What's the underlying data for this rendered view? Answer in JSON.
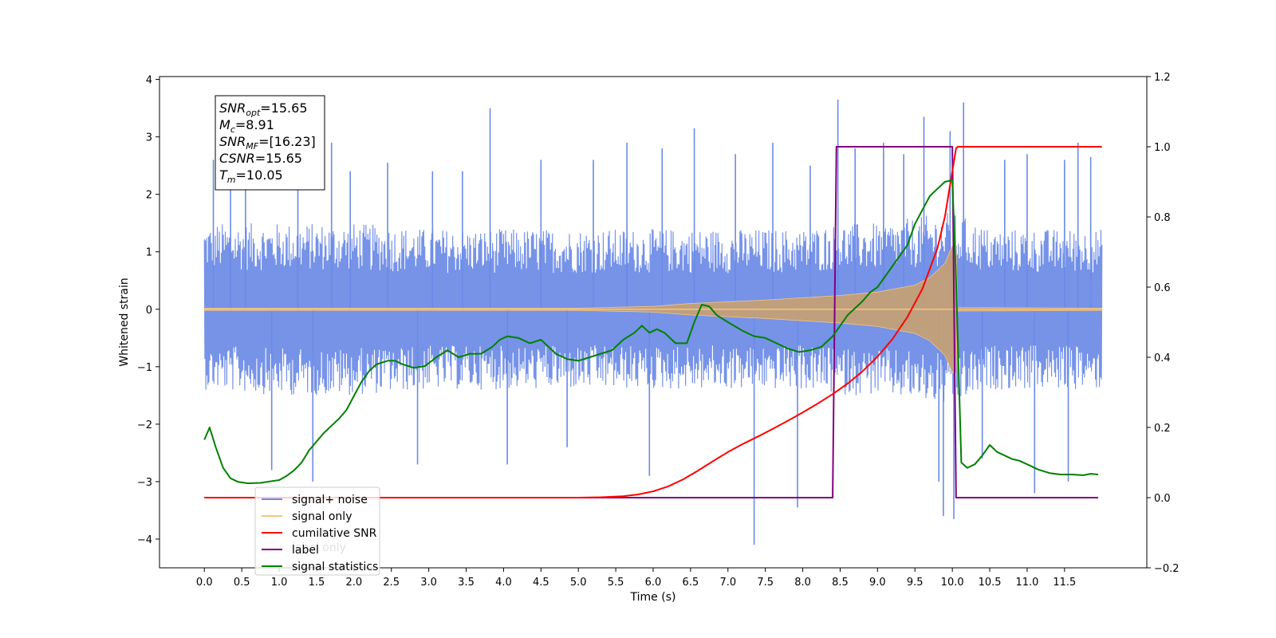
{
  "chart_data": {
    "type": "line",
    "title": "",
    "xlabel": "Time (s)",
    "ylabel": "Whitened strain",
    "xlim": [
      -0.6,
      12.6
    ],
    "ylim": [
      -4.5,
      4.05
    ],
    "y2lim": [
      -0.2,
      1.2
    ],
    "x_ticks": [
      0.0,
      0.5,
      1.0,
      1.5,
      2.0,
      2.5,
      3.0,
      3.5,
      4.0,
      4.5,
      5.0,
      5.5,
      6.0,
      6.5,
      7.0,
      7.5,
      8.0,
      8.5,
      9.0,
      9.5,
      10.0,
      10.5,
      11.0,
      11.5
    ],
    "x_tick_labels": [
      "0.0",
      "0.5",
      "1.0",
      "1.5",
      "2.0",
      "2.5",
      "3.0",
      "3.5",
      "4.0",
      "4.5",
      "5.0",
      "5.5",
      "6.0",
      "6.5",
      "7.0",
      "7.5",
      "8.0",
      "8.5",
      "9.0",
      "9.5",
      "10.0",
      "10.5",
      "11.0",
      "11.5"
    ],
    "y_ticks": [
      -4,
      -3,
      -2,
      -1,
      0,
      1,
      2,
      3,
      4
    ],
    "y_tick_labels": [
      "−4",
      "−3",
      "−2",
      "−1",
      "0",
      "1",
      "2",
      "3",
      "4"
    ],
    "y2_ticks": [
      -0.2,
      0.0,
      0.2,
      0.4,
      0.6,
      0.8,
      1.0,
      1.2
    ],
    "y2_tick_labels": [
      "−0.2",
      "0.0",
      "0.2",
      "0.4",
      "0.6",
      "0.8",
      "1.0",
      "1.2"
    ],
    "grid": false,
    "legend_position": "bottom-left",
    "colors": {
      "noise": "#6a8ae6",
      "signal": "#f5c583",
      "overlap": "#c49f77",
      "csnr": "#ff0000",
      "label": "#800080",
      "stats": "#008000"
    },
    "series": [
      {
        "name": "signal+ noise",
        "axis": "left",
        "envelope": {
          "x": [
            0.0,
            1.0,
            2.0,
            3.0,
            4.0,
            5.0,
            6.0,
            7.0,
            8.0,
            8.5,
            9.0,
            9.5,
            10.0,
            10.5,
            11.0,
            11.5,
            12.0
          ],
          "upper": [
            1.5,
            1.5,
            1.5,
            1.4,
            1.4,
            1.4,
            1.4,
            1.4,
            1.4,
            1.5,
            1.5,
            1.6,
            1.7,
            1.4,
            1.4,
            1.4,
            1.4
          ],
          "lower": [
            -1.4,
            -1.5,
            -1.5,
            -1.4,
            -1.4,
            -1.4,
            -1.4,
            -1.4,
            -1.4,
            -1.5,
            -1.5,
            -1.6,
            -1.7,
            -1.4,
            -1.4,
            -1.4,
            -1.4
          ]
        },
        "spikes": [
          [
            0.12,
            2.6
          ],
          [
            0.35,
            2.3
          ],
          [
            0.55,
            2.9
          ],
          [
            0.9,
            -2.8
          ],
          [
            1.25,
            2.7
          ],
          [
            1.45,
            -3.0
          ],
          [
            1.7,
            2.9
          ],
          [
            1.95,
            2.4
          ],
          [
            2.45,
            2.55
          ],
          [
            2.85,
            -2.7
          ],
          [
            3.05,
            2.4
          ],
          [
            3.45,
            2.4
          ],
          [
            3.82,
            3.5
          ],
          [
            4.05,
            -2.7
          ],
          [
            4.5,
            2.6
          ],
          [
            4.85,
            -2.4
          ],
          [
            5.2,
            2.6
          ],
          [
            5.65,
            2.9
          ],
          [
            5.95,
            -2.9
          ],
          [
            6.12,
            2.8
          ],
          [
            6.55,
            3.15
          ],
          [
            7.1,
            2.7
          ],
          [
            7.35,
            -4.1
          ],
          [
            7.6,
            2.9
          ],
          [
            7.93,
            -3.45
          ],
          [
            8.1,
            2.5
          ],
          [
            8.47,
            3.65
          ],
          [
            8.7,
            2.8
          ],
          [
            9.08,
            2.9
          ],
          [
            9.35,
            2.7
          ],
          [
            9.62,
            3.35
          ],
          [
            9.82,
            -3.0
          ],
          [
            9.97,
            3.1
          ],
          [
            9.88,
            -3.6
          ],
          [
            10.02,
            -3.65
          ],
          [
            10.15,
            3.6
          ],
          [
            10.4,
            -2.6
          ],
          [
            10.7,
            2.6
          ],
          [
            11.0,
            2.7
          ],
          [
            11.1,
            -3.2
          ],
          [
            11.5,
            2.6
          ],
          [
            11.68,
            2.9
          ],
          [
            11.55,
            -3.0
          ],
          [
            11.85,
            2.65
          ]
        ]
      },
      {
        "name": "signal only",
        "axis": "left",
        "envelope": {
          "x": [
            0.0,
            5.0,
            6.0,
            6.5,
            7.0,
            7.5,
            8.0,
            8.5,
            9.0,
            9.5,
            9.7,
            9.9,
            10.0,
            10.05,
            10.07,
            12.0
          ],
          "upper": [
            0.02,
            0.02,
            0.05,
            0.1,
            0.13,
            0.16,
            0.2,
            0.24,
            0.3,
            0.42,
            0.55,
            0.8,
            1.1,
            1.1,
            0.03,
            0.02
          ],
          "lower": [
            -0.02,
            -0.02,
            -0.05,
            -0.1,
            -0.13,
            -0.16,
            -0.2,
            -0.24,
            -0.3,
            -0.42,
            -0.55,
            -0.8,
            -1.1,
            -1.1,
            -0.03,
            -0.02
          ]
        }
      },
      {
        "name": "cumilative SNR",
        "axis": "right",
        "x": [
          0.0,
          5.0,
          5.3,
          5.6,
          5.8,
          6.0,
          6.2,
          6.4,
          6.6,
          6.8,
          7.0,
          7.2,
          7.4,
          7.6,
          7.8,
          8.0,
          8.2,
          8.4,
          8.6,
          8.8,
          9.0,
          9.2,
          9.4,
          9.6,
          9.8,
          9.9,
          10.0,
          10.05,
          10.07,
          12.0
        ],
        "y": [
          0.0,
          0.0,
          0.001,
          0.004,
          0.009,
          0.018,
          0.032,
          0.052,
          0.077,
          0.104,
          0.13,
          0.153,
          0.174,
          0.196,
          0.219,
          0.243,
          0.268,
          0.295,
          0.325,
          0.36,
          0.402,
          0.452,
          0.515,
          0.595,
          0.71,
          0.8,
          0.93,
          0.995,
          1.0,
          1.0
        ]
      },
      {
        "name": "label",
        "axis": "right",
        "x": [
          0.0,
          8.4,
          8.45,
          10.0,
          10.05,
          11.95
        ],
        "y": [
          0.0,
          0.0,
          1.0,
          1.0,
          0.0,
          0.0
        ]
      },
      {
        "name": "signal statistics",
        "axis": "right",
        "x": [
          0.0,
          0.07,
          0.15,
          0.25,
          0.35,
          0.45,
          0.58,
          0.75,
          0.9,
          1.0,
          1.1,
          1.2,
          1.3,
          1.4,
          1.5,
          1.6,
          1.7,
          1.8,
          1.9,
          2.0,
          2.1,
          2.2,
          2.3,
          2.45,
          2.55,
          2.65,
          2.8,
          2.95,
          3.1,
          3.25,
          3.4,
          3.55,
          3.7,
          3.85,
          3.95,
          4.05,
          4.2,
          4.35,
          4.5,
          4.6,
          4.7,
          4.85,
          5.0,
          5.15,
          5.3,
          5.45,
          5.6,
          5.75,
          5.85,
          5.95,
          6.05,
          6.15,
          6.3,
          6.45,
          6.55,
          6.65,
          6.75,
          6.85,
          7.0,
          7.2,
          7.35,
          7.5,
          7.65,
          7.8,
          7.95,
          8.1,
          8.25,
          8.4,
          8.5,
          8.6,
          8.7,
          8.8,
          8.9,
          9.0,
          9.1,
          9.2,
          9.3,
          9.4,
          9.5,
          9.6,
          9.7,
          9.8,
          9.9,
          10.0,
          10.05,
          10.12,
          10.2,
          10.3,
          10.4,
          10.5,
          10.6,
          10.7,
          10.8,
          10.9,
          11.0,
          11.15,
          11.3,
          11.45,
          11.6,
          11.75,
          11.85,
          11.95
        ],
        "y": [
          0.165,
          0.2,
          0.145,
          0.085,
          0.055,
          0.045,
          0.041,
          0.042,
          0.047,
          0.05,
          0.062,
          0.078,
          0.1,
          0.135,
          0.16,
          0.185,
          0.205,
          0.225,
          0.25,
          0.29,
          0.33,
          0.36,
          0.38,
          0.39,
          0.39,
          0.38,
          0.37,
          0.375,
          0.4,
          0.42,
          0.4,
          0.41,
          0.41,
          0.43,
          0.45,
          0.46,
          0.455,
          0.44,
          0.45,
          0.43,
          0.41,
          0.395,
          0.39,
          0.4,
          0.41,
          0.42,
          0.45,
          0.47,
          0.49,
          0.47,
          0.48,
          0.47,
          0.44,
          0.44,
          0.5,
          0.55,
          0.545,
          0.52,
          0.5,
          0.475,
          0.46,
          0.455,
          0.44,
          0.425,
          0.415,
          0.42,
          0.43,
          0.46,
          0.49,
          0.52,
          0.54,
          0.56,
          0.585,
          0.6,
          0.63,
          0.66,
          0.69,
          0.72,
          0.78,
          0.82,
          0.86,
          0.88,
          0.9,
          0.905,
          0.62,
          0.1,
          0.085,
          0.095,
          0.12,
          0.15,
          0.13,
          0.12,
          0.11,
          0.105,
          0.095,
          0.08,
          0.07,
          0.066,
          0.066,
          0.064,
          0.068,
          0.066
        ]
      }
    ],
    "annotations": [
      {
        "base": "SNR",
        "sub": "opt",
        "value": "=15.65"
      },
      {
        "base": "M",
        "sub": "c",
        "value": "=8.91"
      },
      {
        "base": "SNR",
        "sub": "MF",
        "value": "=[16.23]"
      },
      {
        "base": "CSNR",
        "sub": "",
        "value": "=15.65"
      },
      {
        "base": "T",
        "sub": "m",
        "value": "=10.05"
      }
    ],
    "legend": {
      "entries": [
        "signal+ noise",
        "signal only",
        "cumilative SNR",
        "label",
        "signal statistics"
      ],
      "ghost_text": "label only"
    }
  }
}
